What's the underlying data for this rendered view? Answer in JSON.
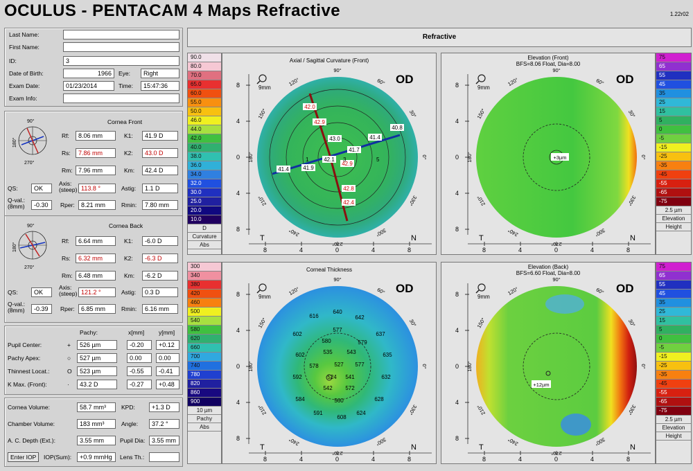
{
  "header": {
    "title": "OCULUS  -  PENTACAM   4 Maps Refractive",
    "version": "1.22r02"
  },
  "patient": {
    "labels": {
      "last": "Last Name:",
      "first": "First Name:",
      "id": "ID:",
      "dob": "Date of Birth:",
      "eye": "Eye:",
      "exam_date": "Exam Date:",
      "time": "Time:",
      "exam_info": "Exam Info:"
    },
    "last": "",
    "first": "",
    "id": "3",
    "dob": "1966",
    "eye": "Right",
    "exam_date": "01/23/2014",
    "time": "15:47:36",
    "exam_info": ""
  },
  "cornea_front": {
    "title": "Cornea Front",
    "labels": {
      "rf": "Rf:",
      "rs": "Rs:",
      "rm": "Rm:",
      "k1": "K1:",
      "k2": "K2:",
      "km": "Km:",
      "qs": "QS:",
      "axis": "Axis:",
      "axis2": "(steep)",
      "astig": "Astig:",
      "qval": "Q-val.:",
      "qval2": "(8mm)",
      "rper": "Rper:",
      "rmin": "Rmin:"
    },
    "rf": "8.06 mm",
    "rs": "7.86 mm",
    "rm": "7.96 mm",
    "k1": "41.9 D",
    "k2": "43.0 D",
    "km": "42.4 D",
    "qs": "OK",
    "axis": "113.8 °",
    "astig": "1.1 D",
    "qval": "-0.30",
    "rper": "8.21 mm",
    "rmin": "7.80 mm",
    "angles": {
      "top": "90°",
      "left": "180°",
      "bottom": "270°"
    }
  },
  "cornea_back": {
    "title": "Cornea Back",
    "labels": {
      "rf": "Rf:",
      "rs": "Rs:",
      "rm": "Rm:",
      "k1": "K1:",
      "k2": "K2:",
      "km": "Km:",
      "qs": "QS:",
      "axis": "Axis:",
      "axis2": "(steep)",
      "astig": "Astig:",
      "qval": "Q-val.:",
      "qval2": "(8mm)",
      "rper": "Rper:",
      "rmin": "Rmin:"
    },
    "rf": "6.64 mm",
    "rs": "6.32 mm",
    "rm": "6.48 mm",
    "k1": "-6.0 D",
    "k2": "-6.3 D",
    "km": "-6.2 D",
    "qs": "OK",
    "axis": "121.2 °",
    "astig": "0.3 D",
    "qval": "-0.39",
    "rper": "6.85 mm",
    "rmin": "6.16 mm",
    "angles": {
      "top": "90°",
      "left": "180°",
      "bottom": "270°"
    }
  },
  "pachy": {
    "headers": {
      "pachy": "Pachy:",
      "x": "x[mm]",
      "y": "y[mm]"
    },
    "rows": [
      {
        "label": "Pupil Center:",
        "sym": "+",
        "pachy": "526 µm",
        "x": "-0.20",
        "y": "+0.12"
      },
      {
        "label": "Pachy Apex:",
        "sym": "○",
        "pachy": "527 µm",
        "x": "0.00",
        "y": "0.00"
      },
      {
        "label": "Thinnest Locat.:",
        "sym": "O",
        "pachy": "523 µm",
        "x": "-0.55",
        "y": "-0.41"
      },
      {
        "label": "K Max. (Front):",
        "sym": "·",
        "pachy": "43.2 D",
        "x": "-0.27",
        "y": "+0.48"
      }
    ]
  },
  "volume": {
    "labels": {
      "cv": "Cornea Volume:",
      "kpd": "KPD:",
      "chv": "Chamber Volume:",
      "angle": "Angle:",
      "acd": "A. C. Depth (Ext.):",
      "pupil": "Pupil Dia:",
      "iop_btn": "Enter IOP",
      "iop": "IOP(Sum):",
      "lens": "Lens Th.:"
    },
    "cv": "58.7 mm³",
    "kpd": "+1.3 D",
    "chv": "183 mm³",
    "angle": "37.2 °",
    "acd": "3.55 mm",
    "pupil": "3.55 mm",
    "iop": "+0.9 mmHg",
    "lens": ""
  },
  "refractive_header": "Refractive",
  "maps": {
    "axial": {
      "title": "Axial / Sagittal Curvature (Front)",
      "od": "OD",
      "zoom": "9mm",
      "T": "T",
      "N": "N",
      "labels": [
        "42.0",
        "42.9",
        "43.0",
        "41.7",
        "40.8",
        "41.4",
        "41.9",
        "42.1",
        "41.4",
        "42.9",
        "42.8",
        "42.4"
      ],
      "numbers": [
        "1",
        "3",
        "5"
      ]
    },
    "elev_front": {
      "title": "Elevation (Front)",
      "subtitle": "BFS=8.06 Float, Dia=8.00",
      "od": "OD",
      "zoom": "9mm",
      "T": "T",
      "N": "N",
      "point": "+3µm"
    },
    "thickness": {
      "title": "Corneal Thickness",
      "od": "OD",
      "zoom": "9mm",
      "T": "T",
      "N": "N",
      "values": [
        "640",
        "616",
        "642",
        "602",
        "577",
        "637",
        "580",
        "579",
        "602",
        "535",
        "543",
        "635",
        "578",
        "527",
        "577",
        "592",
        "524",
        "541",
        "632",
        "542",
        "572",
        "584",
        "560",
        "628",
        "591",
        "608",
        "624"
      ]
    },
    "elev_back": {
      "title": "Elevation (Back)",
      "subtitle": "BFS=6.60 Float, Dia=8.00",
      "od": "OD",
      "zoom": "9mm",
      "T": "T",
      "N": "N",
      "point": "+12µm"
    },
    "axis_ticks": {
      "y": [
        "8",
        "4",
        "0",
        "4",
        "8"
      ],
      "x": [
        "8",
        "4",
        "0",
        "4",
        "8"
      ],
      "deg": [
        "90°",
        "60°",
        "30°",
        "0°",
        "330°",
        "300°",
        "270°",
        "240°",
        "210°",
        "180°",
        "150°",
        "120°"
      ]
    }
  },
  "scales": {
    "curvature": {
      "values": [
        "90.0",
        "80.0",
        "70.0",
        "65.0",
        "60.0",
        "55.0",
        "50.0",
        "46.0",
        "44.0",
        "42.0",
        "40.0",
        "38.0",
        "36.0",
        "34.0",
        "32.0",
        "30.0",
        "25.0",
        "20.0",
        "10.0"
      ],
      "colors": [
        "#f0e0e8",
        "#f6c8d4",
        "#e07080",
        "#e83030",
        "#f05010",
        "#f89010",
        "#f8c010",
        "#f0f020",
        "#a8e040",
        "#40c040",
        "#30b070",
        "#30c0b0",
        "#30b0d8",
        "#3080e0",
        "#2050e0",
        "#2030c0",
        "#2020a0",
        "#100880",
        "#200060"
      ],
      "unit": "D",
      "foot1": "Curvature",
      "foot2": "Abs"
    },
    "elev_front": {
      "values": [
        "75",
        "65",
        "55",
        "45",
        "35",
        "25",
        "15",
        "5",
        "0",
        "-5",
        "-15",
        "-25",
        "-35",
        "-45",
        "-55",
        "-65",
        "-75"
      ],
      "colors": [
        "#d020d0",
        "#9030d0",
        "#2030c0",
        "#2050e0",
        "#2090e0",
        "#30b8d8",
        "#30c0a0",
        "#30b060",
        "#40c040",
        "#70d040",
        "#f0f020",
        "#f8c010",
        "#f88010",
        "#f04010",
        "#d82010",
        "#b01010",
        "#800010"
      ],
      "unit": "2.5 µm",
      "foot1": "Elevation",
      "foot2": "Height"
    },
    "thickness": {
      "values": [
        "300",
        "340",
        "380",
        "420",
        "460",
        "500",
        "540",
        "580",
        "620",
        "660",
        "700",
        "740",
        "780",
        "820",
        "860",
        "900"
      ],
      "colors": [
        "#f6c8d4",
        "#f090a0",
        "#e83030",
        "#f05010",
        "#f88010",
        "#f0f020",
        "#a8e040",
        "#40c040",
        "#30b070",
        "#30c0b0",
        "#30a8e0",
        "#2070e0",
        "#2040d0",
        "#2020a0",
        "#180880",
        "#100060"
      ],
      "unit": "10 µm",
      "foot1": "Pachy",
      "foot2": "Abs"
    },
    "elev_back": {
      "values": [
        "75",
        "65",
        "55",
        "45",
        "35",
        "25",
        "15",
        "5",
        "0",
        "-5",
        "-15",
        "-25",
        "-35",
        "-45",
        "-55",
        "-65",
        "-75"
      ],
      "colors": [
        "#d020d0",
        "#9030d0",
        "#2030c0",
        "#2050e0",
        "#2090e0",
        "#30b8d8",
        "#30c0a0",
        "#30b060",
        "#40c040",
        "#70d040",
        "#f0f020",
        "#f8c010",
        "#f88010",
        "#f04010",
        "#d82010",
        "#b01010",
        "#800010"
      ],
      "unit": "2.5 µm",
      "foot1": "Elevation",
      "foot2": "Height"
    }
  }
}
